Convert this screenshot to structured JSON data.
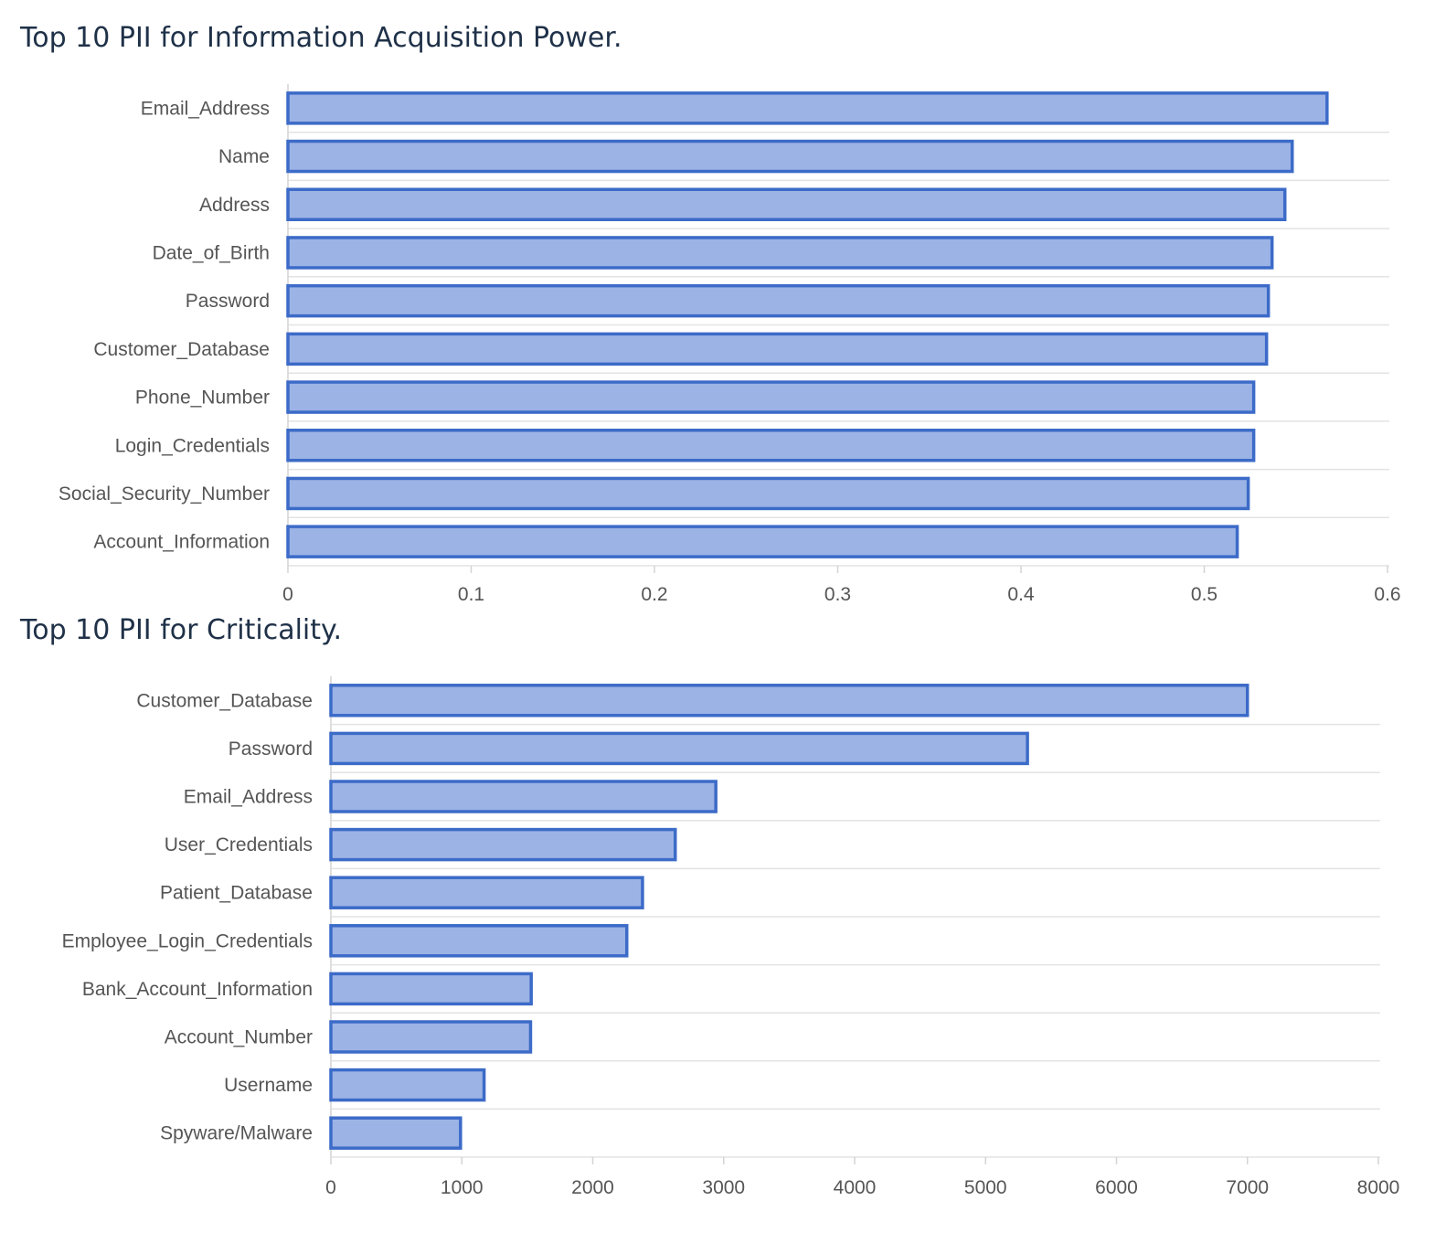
{
  "charts": [
    {
      "title": "Top 10 PII for Information Acquisition Power.",
      "chart_data": {
        "type": "bar",
        "orientation": "horizontal",
        "categories": [
          "Email_Address",
          "Name",
          "Address",
          "Date_of_Birth",
          "Password",
          "Customer_Database",
          "Phone_Number",
          "Login_Credentials",
          "Social_Security_Number",
          "Account_Information"
        ],
        "values": [
          0.567,
          0.548,
          0.544,
          0.537,
          0.535,
          0.534,
          0.527,
          0.527,
          0.524,
          0.518
        ],
        "xlim": [
          0,
          0.6
        ],
        "xticks": [
          "0",
          "0.1",
          "0.2",
          "0.3",
          "0.4",
          "0.5",
          "0.6"
        ],
        "grid": true,
        "bar_fill": "#9cb3e5",
        "bar_stroke": "#3c6bc8"
      }
    },
    {
      "title": "Top 10 PII for Criticality.",
      "chart_data": {
        "type": "bar",
        "orientation": "horizontal",
        "categories": [
          "Customer_Database",
          "Password",
          "Email_Address",
          "User_Credentials",
          "Patient_Database",
          "Employee_Login_Credentials",
          "Bank_Account_Information",
          "Account_Number",
          "Username",
          "Spyware/Malware"
        ],
        "values": [
          7000,
          5320,
          2940,
          2630,
          2380,
          2260,
          1530,
          1525,
          1170,
          990
        ],
        "xlim": [
          0,
          8000
        ],
        "xticks": [
          "0",
          "1000",
          "2000",
          "3000",
          "4000",
          "5000",
          "6000",
          "7000",
          "8000"
        ],
        "grid": true,
        "bar_fill": "#9cb3e5",
        "bar_stroke": "#3c6bc8"
      }
    }
  ]
}
